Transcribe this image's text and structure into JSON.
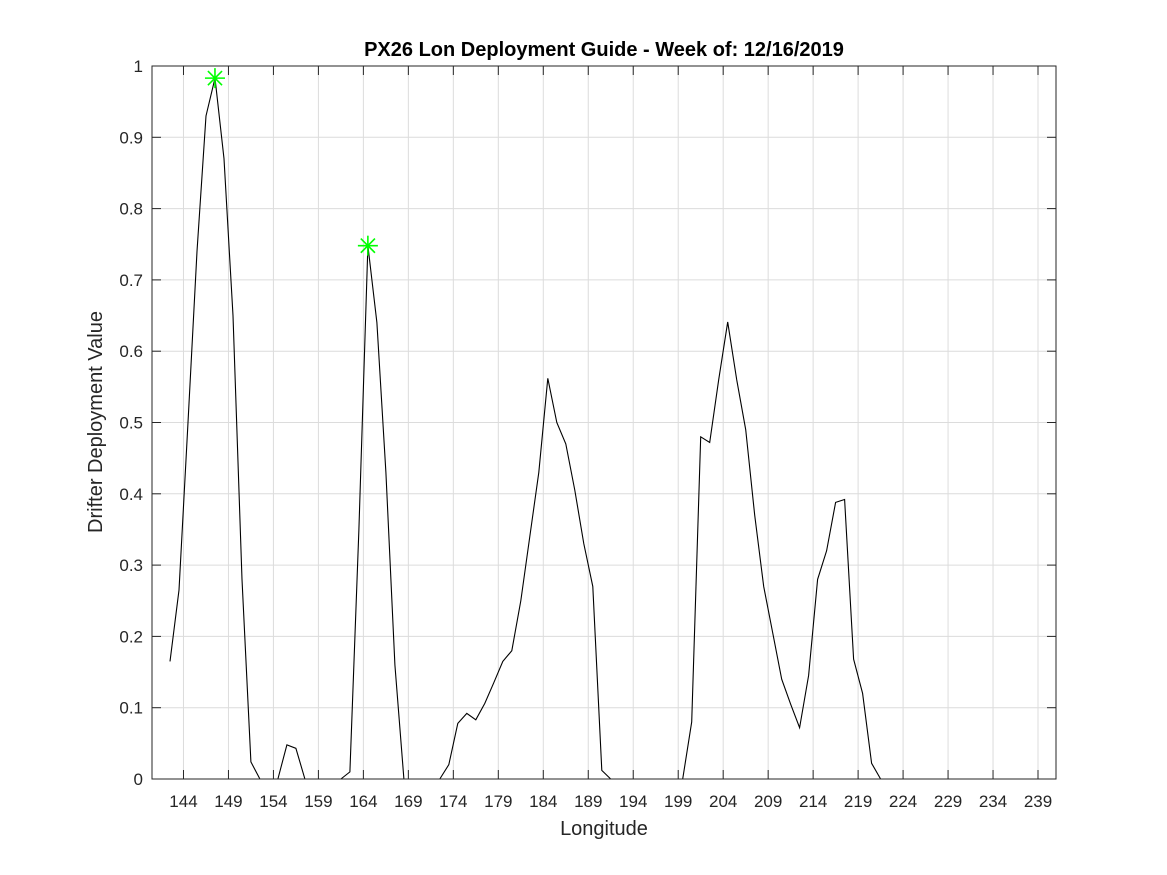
{
  "chart_data": {
    "type": "line",
    "title": "PX26 Lon Deployment Guide - Week of: 12/16/2019",
    "xlabel": "Longitude",
    "ylabel": "Drifter Deployment Value",
    "xlim": [
      140.5,
      241
    ],
    "ylim": [
      0,
      1
    ],
    "xticks": [
      144,
      149,
      154,
      159,
      164,
      169,
      174,
      179,
      184,
      189,
      194,
      199,
      204,
      209,
      214,
      219,
      224,
      229,
      234,
      239
    ],
    "yticks": [
      0,
      0.1,
      0.2,
      0.3,
      0.4,
      0.5,
      0.6,
      0.7,
      0.8,
      0.9,
      1
    ],
    "ytick_labels": [
      "0",
      "0.1",
      "0.2",
      "0.3",
      "0.4",
      "0.5",
      "0.6",
      "0.7",
      "0.8",
      "0.9",
      "1"
    ],
    "grid": true,
    "series": [
      {
        "color": "#000000",
        "x": [
          142.5,
          143.5,
          144.5,
          145.5,
          146.5,
          147.5,
          148.5,
          149.5,
          150.5,
          151.5,
          152.5,
          153.5,
          154.5,
          155.5,
          156.5,
          157.5,
          158.5,
          159.5,
          160.5,
          161.5,
          162.5,
          163.5,
          164.5,
          165.5,
          166.5,
          167.5,
          168.5,
          169.5,
          170.5,
          171.5,
          172.5,
          173.5,
          174.5,
          175.5,
          176.5,
          177.5,
          178.5,
          179.5,
          180.5,
          181.5,
          182.5,
          183.5,
          184.5,
          185.5,
          186.5,
          187.5,
          188.5,
          189.5,
          190.5,
          191.5,
          192.5,
          193.5,
          194.5,
          195.5,
          196.5,
          197.5,
          198.5,
          199.5,
          200.5,
          201.5,
          202.5,
          203.5,
          204.5,
          205.5,
          206.5,
          207.5,
          208.5,
          209.5,
          210.5,
          211.5,
          212.5,
          213.5,
          214.5,
          215.5,
          216.5,
          217.5,
          218.5,
          219.5,
          220.5,
          221.5,
          222.5,
          223.5,
          224.5,
          225.5,
          226.5,
          227.5,
          228.5,
          229.5,
          230.5,
          231.5,
          232.5,
          233.5,
          234.5,
          235.5,
          236.5,
          237.5
        ],
        "y": [
          0.165,
          0.265,
          0.5,
          0.74,
          0.93,
          0.983,
          0.87,
          0.65,
          0.28,
          0.024,
          0.0,
          0.0,
          0.0,
          0.048,
          0.043,
          0.0,
          0.0,
          0.0,
          0.0,
          0.0,
          0.01,
          0.35,
          0.748,
          0.64,
          0.43,
          0.16,
          0.0,
          0.0,
          0.0,
          0.0,
          0.0,
          0.02,
          0.078,
          0.092,
          0.083,
          0.106,
          0.135,
          0.165,
          0.18,
          0.25,
          0.34,
          0.43,
          0.562,
          0.5,
          0.47,
          0.405,
          0.33,
          0.27,
          0.012,
          0.0,
          0.0,
          0.0,
          0.0,
          0.0,
          0.0,
          0.0,
          0.0,
          0.0,
          0.08,
          0.48,
          0.472,
          0.56,
          0.641,
          0.56,
          0.49,
          0.37,
          0.27,
          0.205,
          0.14,
          0.105,
          0.072,
          0.145,
          0.28,
          0.32,
          0.388,
          0.392,
          0.168,
          0.12,
          0.022,
          0.0,
          0.0,
          0.0,
          0.0,
          0.0,
          0.0,
          0.0,
          0.0,
          0.0,
          0.0,
          0.0,
          0.0,
          0.0,
          0.0,
          0.0,
          0.0,
          0.0
        ]
      }
    ],
    "markers": [
      {
        "x": 147.5,
        "y": 0.983,
        "color": "#00ff00",
        "symbol": "asterisk"
      },
      {
        "x": 164.5,
        "y": 0.748,
        "color": "#00ff00",
        "symbol": "asterisk"
      }
    ]
  }
}
